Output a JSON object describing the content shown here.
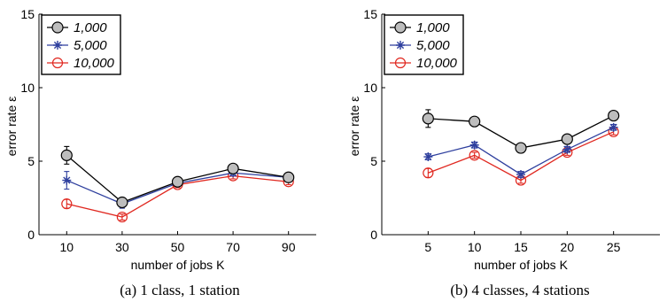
{
  "chart_data": [
    {
      "type": "line",
      "caption": "(a)  1 class, 1 station",
      "xlabel": "number of jobs K",
      "ylabel": "error rate ε",
      "x": [
        10,
        30,
        50,
        70,
        90
      ],
      "xlim": [
        0,
        100
      ],
      "ylim": [
        0,
        15
      ],
      "xticks": [
        "10",
        "30",
        "50",
        "70",
        "90"
      ],
      "yticks": [
        "0",
        "5",
        "10",
        "15"
      ],
      "legend_position": "top-left",
      "series": [
        {
          "name": "1,000",
          "color": "#000000",
          "marker": "circle",
          "values": [
            5.4,
            2.2,
            3.6,
            4.5,
            3.9
          ],
          "errors": [
            0.6,
            0.3,
            0.2,
            0.2,
            0.2
          ]
        },
        {
          "name": "5,000",
          "color": "#2e3f9e",
          "marker": "asterisk",
          "values": [
            3.7,
            2.1,
            3.5,
            4.2,
            3.9
          ],
          "errors": [
            0.6,
            0.3,
            0.2,
            0.2,
            0.2
          ]
        },
        {
          "name": "10,000",
          "color": "#e0271f",
          "marker": "circle-open",
          "values": [
            2.1,
            1.2,
            3.4,
            4.0,
            3.6
          ],
          "errors": [
            0.3,
            0.2,
            0.2,
            0.2,
            0.2
          ]
        }
      ]
    },
    {
      "type": "line",
      "caption": "(b)  4 classes, 4 stations",
      "xlabel": "number of jobs K",
      "ylabel": "error rate ε",
      "x": [
        5,
        10,
        15,
        20,
        25
      ],
      "xlim": [
        0,
        30
      ],
      "ylim": [
        0,
        15
      ],
      "xticks": [
        "5",
        "10",
        "15",
        "20",
        "25"
      ],
      "yticks": [
        "0",
        "5",
        "10",
        "15"
      ],
      "legend_position": "top-left",
      "series": [
        {
          "name": "1,000",
          "color": "#000000",
          "marker": "circle",
          "values": [
            7.9,
            7.7,
            5.9,
            6.5,
            8.1
          ],
          "errors": [
            0.6,
            0.2,
            0.2,
            0.2,
            0.2
          ]
        },
        {
          "name": "5,000",
          "color": "#2e3f9e",
          "marker": "asterisk",
          "values": [
            5.3,
            6.1,
            4.1,
            5.8,
            7.3
          ],
          "errors": [
            0.2,
            0.2,
            0.2,
            0.2,
            0.2
          ]
        },
        {
          "name": "10,000",
          "color": "#e0271f",
          "marker": "circle-open",
          "values": [
            4.2,
            5.4,
            3.7,
            5.6,
            7.0
          ],
          "errors": [
            0.3,
            0.2,
            0.2,
            0.2,
            0.2
          ]
        }
      ]
    }
  ]
}
